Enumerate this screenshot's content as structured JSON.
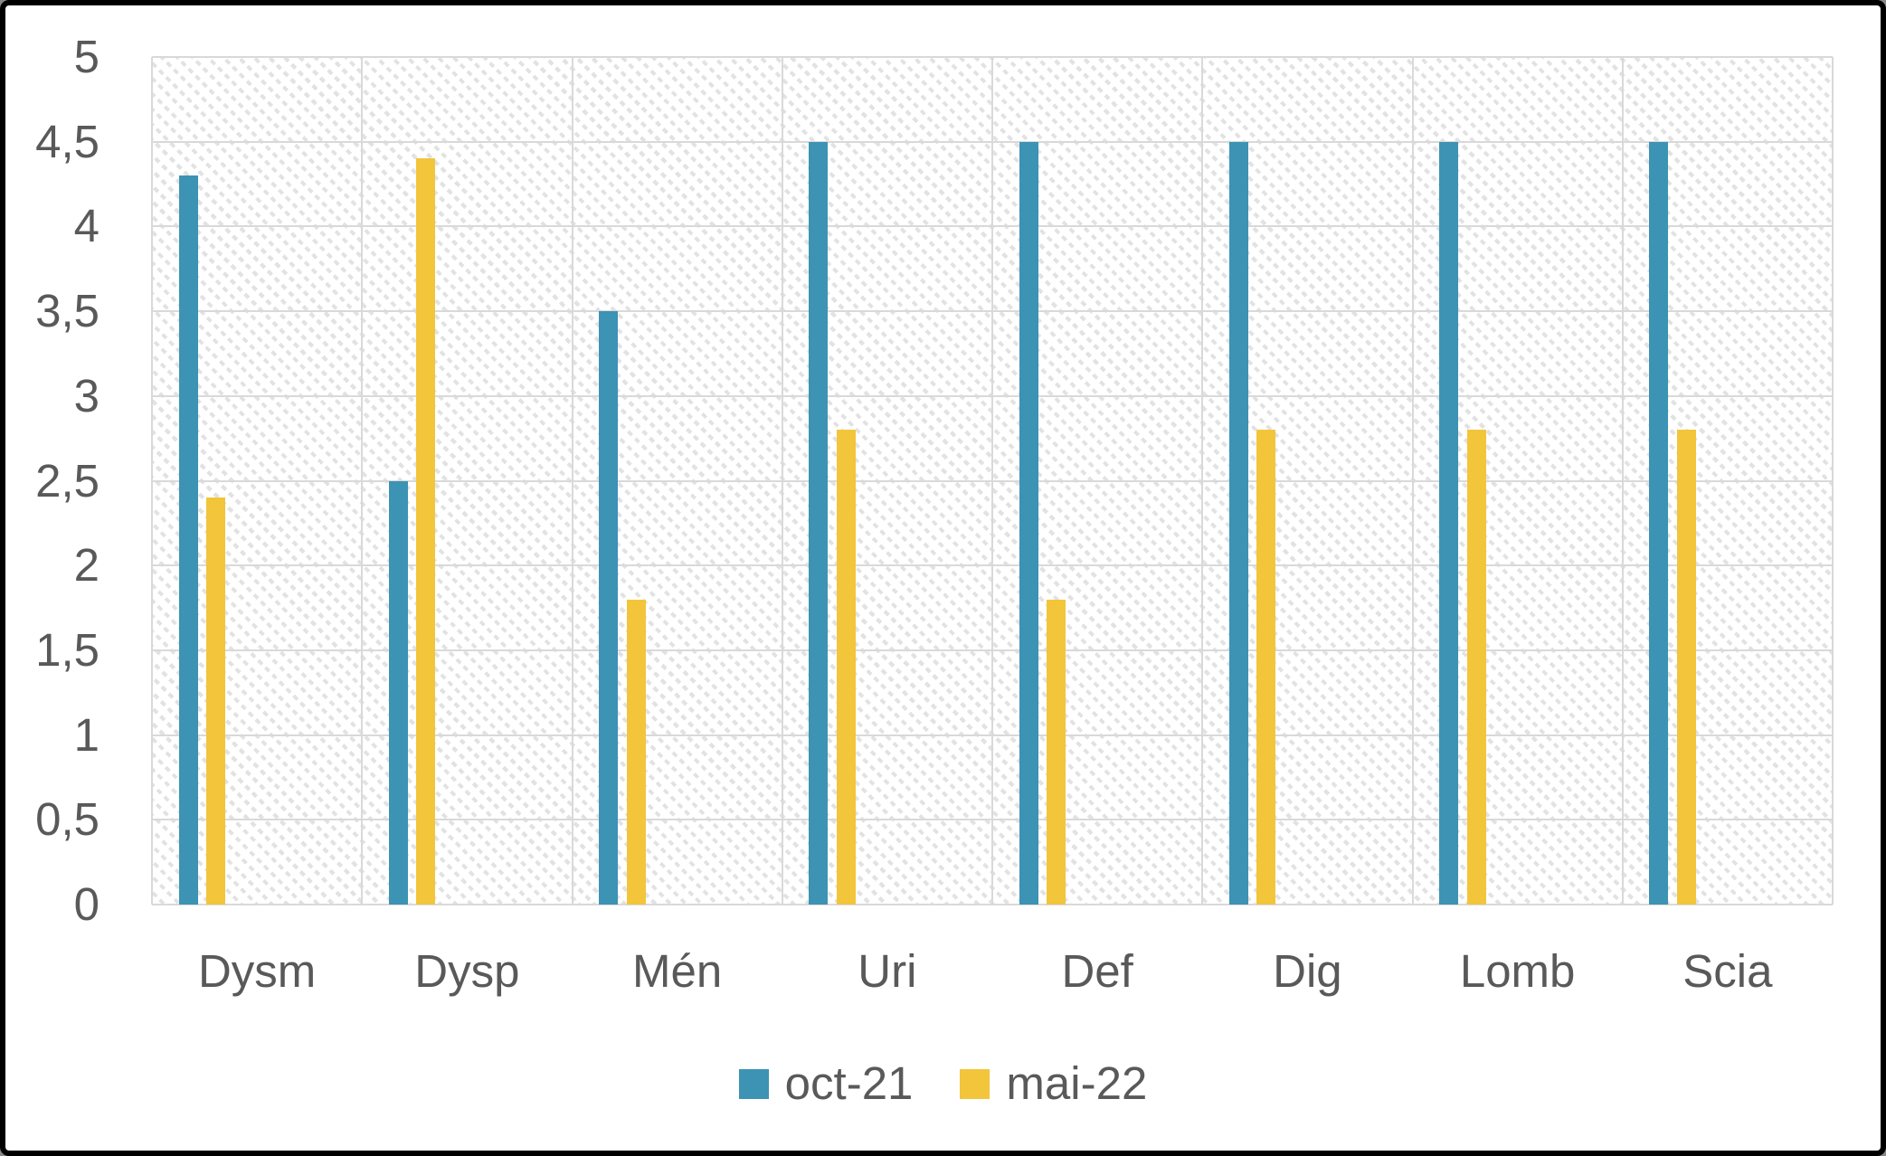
{
  "chart_data": {
    "type": "bar",
    "categories": [
      "Dysm",
      "Dysp",
      "Mén",
      "Uri",
      "Def",
      "Dig",
      "Lomb",
      "Scia"
    ],
    "series": [
      {
        "name": "oct-21",
        "color": "#3C93B4",
        "values": [
          4.3,
          2.5,
          3.5,
          4.5,
          4.5,
          4.5,
          4.5,
          4.5
        ]
      },
      {
        "name": "mai-22",
        "color": "#F2C53B",
        "values": [
          2.4,
          4.4,
          1.8,
          2.8,
          1.8,
          2.8,
          2.8,
          2.8
        ]
      }
    ],
    "ylim": [
      0,
      5
    ],
    "ytick_step": 0.5,
    "ytick_labels": [
      "0",
      "0,5",
      "1",
      "1,5",
      "2",
      "2,5",
      "3",
      "3,5",
      "4",
      "4,5",
      "5"
    ],
    "grid": "both",
    "gridline_color": "#D9D9D9",
    "plot_background": "diagonal-hatch",
    "hatch_color": "#E2E2E2",
    "text_color": "#595959",
    "legend_position": "bottom"
  },
  "legend": {
    "items": [
      {
        "label": "oct-21"
      },
      {
        "label": "mai-22"
      }
    ]
  }
}
